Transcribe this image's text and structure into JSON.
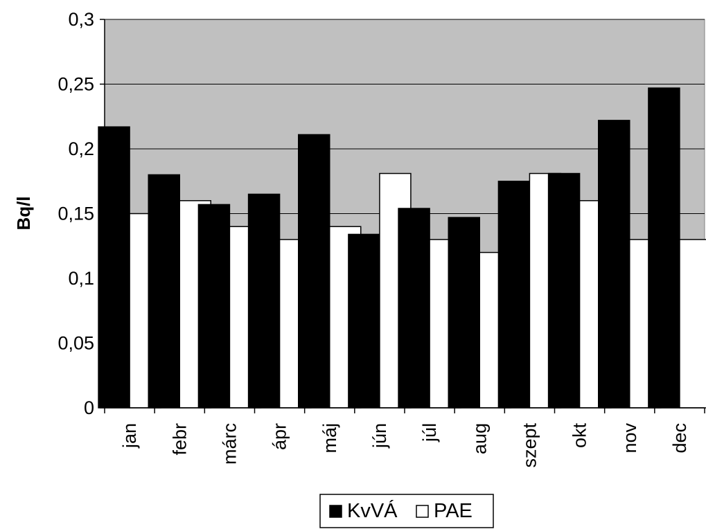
{
  "chart_data": {
    "type": "bar",
    "title": "",
    "xlabel": "",
    "ylabel": "Bq/l",
    "ylim": [
      0,
      0.3
    ],
    "yticks": [
      "0",
      "0,05",
      "0,1",
      "0,15",
      "0,2",
      "0,25",
      "0,3"
    ],
    "ytick_values": [
      0,
      0.05,
      0.1,
      0.15,
      0.2,
      0.25,
      0.3
    ],
    "categories": [
      "jan",
      "febr",
      "márc",
      "ápr",
      "máj",
      "jún",
      "júl",
      "aug",
      "szept",
      "okt",
      "nov",
      "dec"
    ],
    "series": [
      {
        "name": "KvVÁ",
        "color": "#000000",
        "values": [
          0.217,
          0.18,
          0.157,
          0.165,
          0.211,
          0.134,
          0.154,
          0.147,
          0.175,
          0.181,
          0.222,
          0.247
        ]
      },
      {
        "name": "PAE",
        "color": "#ffffff",
        "values": [
          0.15,
          0.16,
          0.14,
          0.13,
          0.14,
          0.181,
          0.13,
          0.12,
          0.181,
          0.16,
          0.13,
          0.13
        ]
      }
    ],
    "plot_background": "#c0c0c0",
    "grid": true,
    "legend_position": "bottom"
  }
}
